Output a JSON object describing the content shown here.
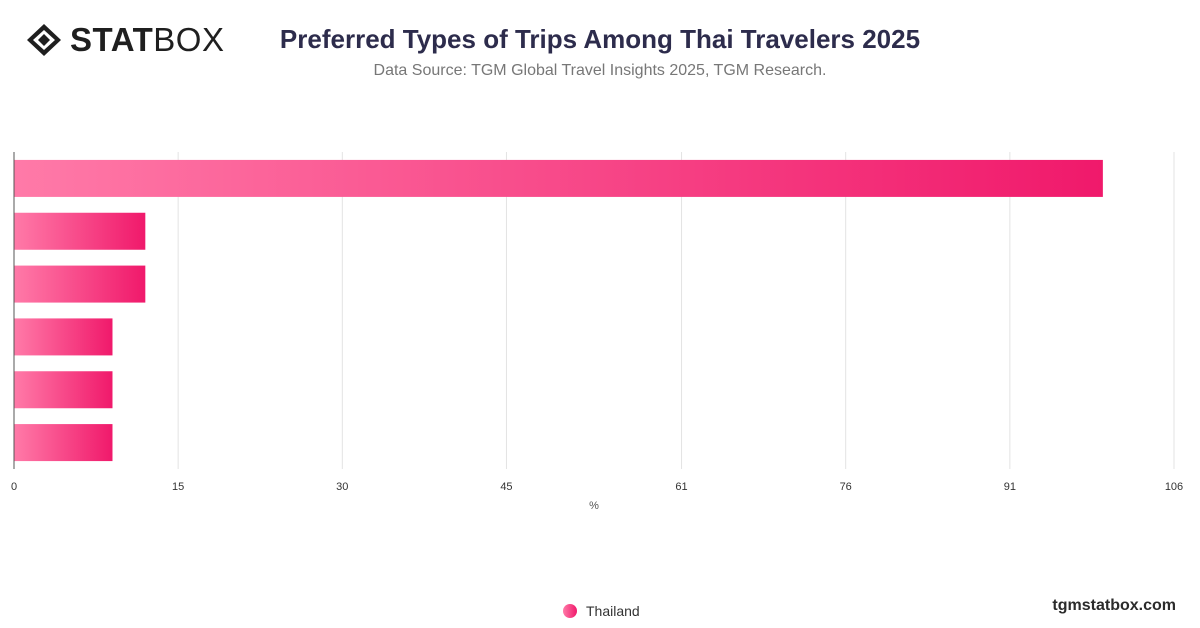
{
  "brand": {
    "logo_part1": "STAT",
    "logo_part2": "BOX",
    "logo_icon": "diamond-logo-icon"
  },
  "header": {
    "title": "Preferred Types of Trips Among Thai Travelers 2025",
    "subtitle": "Data Source: TGM Global Travel Insights 2025, TGM Research."
  },
  "chart_data": {
    "type": "bar",
    "orientation": "horizontal",
    "categories": [
      "",
      "",
      "",
      "",
      "",
      ""
    ],
    "series": [
      {
        "name": "Thailand",
        "values": [
          99.5,
          12,
          12,
          9,
          9,
          9
        ]
      }
    ],
    "xlabel": "%",
    "xlim": [
      0,
      106
    ],
    "ticks": [
      0,
      15,
      30,
      45,
      61,
      76,
      91,
      106
    ],
    "grid": true,
    "legend_position": "bottom",
    "colors": {
      "bar_start": "#ff7aa8",
      "bar_end": "#f0196b",
      "grid": "#e3e3e3",
      "axis": "#555555"
    }
  },
  "legend": {
    "label": "Thailand"
  },
  "footer": {
    "site": "tgmstatbox.com"
  }
}
